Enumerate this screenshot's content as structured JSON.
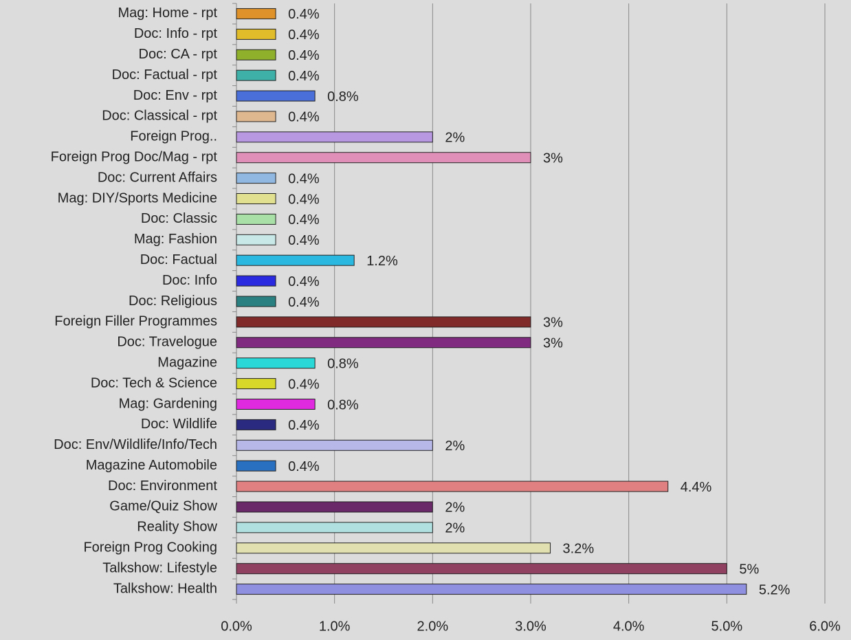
{
  "chart_data": {
    "type": "barh",
    "categories": [
      "Mag: Home - rpt",
      "Doc: Info - rpt",
      "Doc: CA - rpt",
      "Doc: Factual - rpt",
      "Doc: Env - rpt",
      "Doc: Classical - rpt",
      "Foreign Prog..",
      "Foreign Prog Doc/Mag - rpt",
      "Doc: Current Affairs",
      "Mag: DIY/Sports Medicine",
      "Doc: Classic",
      "Mag: Fashion",
      "Doc: Factual",
      "Doc: Info",
      "Doc: Religious",
      "Foreign Filler Programmes",
      "Doc: Travelogue",
      "Magazine",
      "Doc: Tech & Science",
      "Mag: Gardening",
      "Doc: Wildlife",
      "Doc: Env/Wildlife/Info/Tech",
      "Magazine Automobile",
      "Doc: Environment",
      "Game/Quiz Show",
      "Reality Show",
      "Foreign Prog Cooking",
      "Talkshow: Lifestyle",
      "Talkshow: Health"
    ],
    "values": [
      0.4,
      0.4,
      0.4,
      0.4,
      0.8,
      0.4,
      2,
      3,
      0.4,
      0.4,
      0.4,
      0.4,
      1.2,
      0.4,
      0.4,
      3,
      3,
      0.8,
      0.4,
      0.8,
      0.4,
      2,
      0.4,
      4.4,
      2,
      2,
      3.2,
      5,
      5.2
    ],
    "value_labels": [
      "0.4%",
      "0.4%",
      "0.4%",
      "0.4%",
      "0.8%",
      "0.4%",
      "2%",
      "3%",
      "0.4%",
      "0.4%",
      "0.4%",
      "0.4%",
      "1.2%",
      "0.4%",
      "0.4%",
      "3%",
      "3%",
      "0.8%",
      "0.4%",
      "0.8%",
      "0.4%",
      "2%",
      "0.4%",
      "4.4%",
      "2%",
      "2%",
      "3.2%",
      "5%",
      "5.2%"
    ],
    "colors": [
      "#e0922a",
      "#e0bc2a",
      "#8fb02a",
      "#3fb0a8",
      "#4a6fd8",
      "#e0b890",
      "#b898e0",
      "#e090b8",
      "#90b8e0",
      "#e0e090",
      "#a8e0a8",
      "#c8e8e8",
      "#2ab8e0",
      "#2a2ae0",
      "#2a8080",
      "#802a2a",
      "#802a80",
      "#2ad8d8",
      "#d8d82a",
      "#e02ae0",
      "#2a2a80",
      "#b8b8e8",
      "#2a70c0",
      "#e08080",
      "#6a2a6a",
      "#b0e0e0",
      "#e0e0b0",
      "#904060",
      "#9090e0"
    ],
    "xlim": [
      0,
      6
    ],
    "xticks": [
      {
        "value": 0,
        "label": "0.0%"
      },
      {
        "value": 1,
        "label": "1.0%"
      },
      {
        "value": 2,
        "label": "2.0%"
      },
      {
        "value": 3,
        "label": "3.0%"
      },
      {
        "value": 4,
        "label": "4.0%"
      },
      {
        "value": 5,
        "label": "5.0%"
      },
      {
        "value": 6,
        "label": "6.0%"
      }
    ],
    "grid": true
  }
}
